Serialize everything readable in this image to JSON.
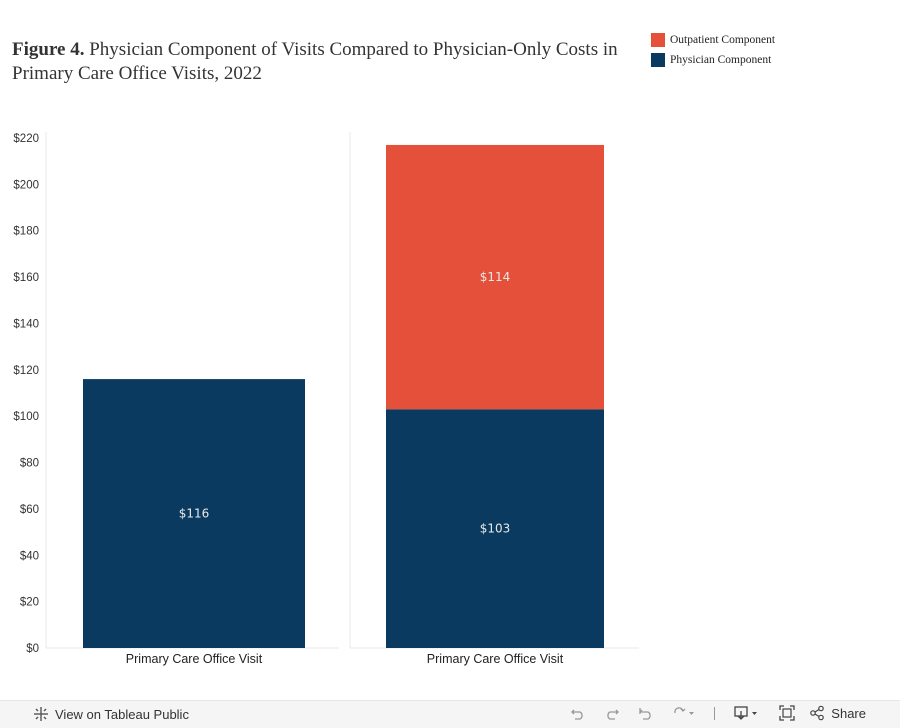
{
  "title": {
    "bold": "Figure 4.",
    "rest": " Physician Component of Visits Compared to Physician-Only Costs in Primary Care Office Visits, 2022"
  },
  "legend": [
    {
      "label": "Outpatient Component",
      "color": "#e4503a"
    },
    {
      "label": "Physician Component",
      "color": "#0a3a5f"
    }
  ],
  "chart_data": {
    "type": "bar",
    "stacked": true,
    "categories": [
      "Primary Care Office Visit",
      "Primary Care Office Visit"
    ],
    "series": [
      {
        "name": "Physician Component",
        "values": [
          116,
          103
        ],
        "labels": [
          "$116",
          "$103"
        ],
        "color": "#0a3a5f"
      },
      {
        "name": "Outpatient Component",
        "values": [
          0,
          114
        ],
        "labels": [
          "",
          "$114"
        ],
        "color": "#e4503a"
      }
    ],
    "ylim": [
      0,
      220
    ],
    "yticks": [
      0,
      20,
      40,
      60,
      80,
      100,
      120,
      140,
      160,
      180,
      200,
      220
    ],
    "ytick_labels": [
      "$0",
      "$20",
      "$40",
      "$60",
      "$80",
      "$100",
      "$120",
      "$140",
      "$160",
      "$180",
      "$200",
      "$220"
    ],
    "xlabel": "",
    "ylabel": "",
    "legend_position": "top-right",
    "grid": false
  },
  "toolbar": {
    "view_label": "View on Tableau Public",
    "share_label": "Share"
  }
}
